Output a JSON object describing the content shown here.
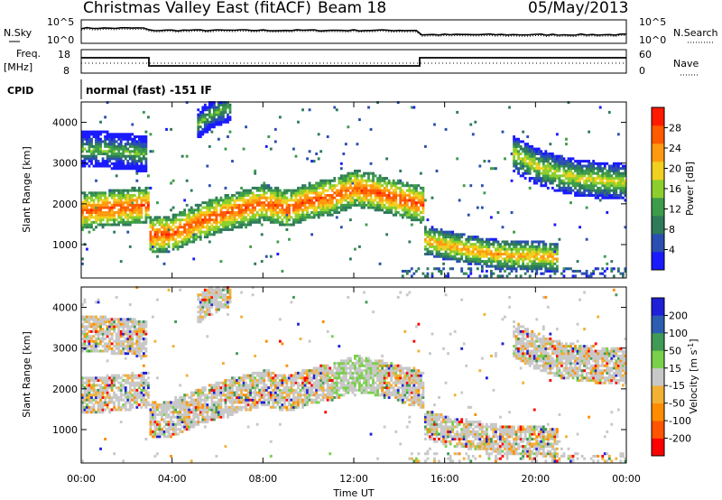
{
  "header": {
    "title": "Christmas Valley East (fitACF)",
    "beam": "Beam 18",
    "date": "05/May/2013"
  },
  "noise_panel": {
    "left_label": "N.Sky",
    "right_label": "N.Search",
    "tick_top": "10^5",
    "tick_bottom": "10^0"
  },
  "freq_panel": {
    "left_label_1": "Freq.",
    "left_label_2": "[MHz]",
    "right_label": "Nave",
    "tick_top_left": "18",
    "tick_bottom_left": "8",
    "tick_top_right": "60",
    "tick_bottom_right": "0"
  },
  "cpid": {
    "label": "CPID",
    "text": "normal (fast) -151 IF"
  },
  "colors": {
    "power": [
      "#1a1aff",
      "#2a4fb0",
      "#2f7a5a",
      "#3d9c4a",
      "#8ccf2c",
      "#f0d020",
      "#ff9a10",
      "#ff5a00",
      "#ff1a00"
    ],
    "velocity": [
      "#ff0000",
      "#ff5500",
      "#ff8c00",
      "#f2b035",
      "#c8c8c8",
      "#79d04a",
      "#3f9a55",
      "#2c5db0",
      "#1f1fd8"
    ]
  },
  "chart_data": [
    {
      "type": "heatmap",
      "name": "power",
      "xlabel": "",
      "ylabel": "Slant Range [km]",
      "colorbar_label": "Power [dB]",
      "colorbar_ticks": [
        "4",
        "8",
        "12",
        "16",
        "20",
        "24",
        "28"
      ],
      "colorbar_range": [
        0,
        30
      ],
      "xlim": [
        0,
        24
      ],
      "ylim": [
        180,
        4500
      ],
      "yticks": [
        "1000",
        "2000",
        "3000",
        "4000"
      ],
      "bands": [
        {
          "x": [
            0.0,
            1.0,
            2.0,
            2.9,
            3.0,
            4.0,
            5.0,
            6.0,
            7.0,
            8.0,
            9.0,
            10.0,
            11.0,
            12.0,
            13.0,
            14.0,
            15.0
          ],
          "y": [
            1800,
            1850,
            1900,
            1950,
            1200,
            1250,
            1500,
            1700,
            1850,
            2000,
            1850,
            2050,
            2150,
            2350,
            2250,
            2100,
            1950
          ],
          "width": 250,
          "value": 26
        },
        {
          "x": [
            15.0,
            16.0,
            17.0,
            18.0,
            19.0,
            20.0,
            21.0
          ],
          "y": [
            1100,
            950,
            850,
            750,
            700,
            700,
            650
          ],
          "width": 200,
          "value": 22
        },
        {
          "x": [
            19.0,
            20.0,
            21.0,
            22.0,
            23.0,
            24.0
          ],
          "y": [
            3200,
            2900,
            2700,
            2600,
            2550,
            2500
          ],
          "width": 250,
          "value": 18
        },
        {
          "x": [
            0.0,
            1.0,
            2.0,
            2.9
          ],
          "y": [
            3300,
            3300,
            3250,
            3200
          ],
          "width": 250,
          "value": 14
        },
        {
          "x": [
            5.0,
            5.5,
            6.0,
            6.5
          ],
          "y": [
            3900,
            4100,
            4250,
            4350
          ],
          "width": 200,
          "value": 14
        }
      ]
    },
    {
      "type": "heatmap",
      "name": "velocity",
      "xlabel": "Time UT",
      "ylabel": "Slant Range [km]",
      "colorbar_label": "Velocity [m s-1]",
      "colorbar_ticks": [
        "-200",
        "-100",
        "-50",
        "-15",
        "15",
        "50",
        "100",
        "200"
      ],
      "xlim": [
        0,
        24
      ],
      "ylim": [
        180,
        4500
      ],
      "yticks": [
        "1000",
        "2000",
        "3000",
        "4000"
      ],
      "xticks": [
        "00:00",
        "04:00",
        "08:00",
        "12:00",
        "16:00",
        "20:00",
        "00:00"
      ]
    }
  ]
}
